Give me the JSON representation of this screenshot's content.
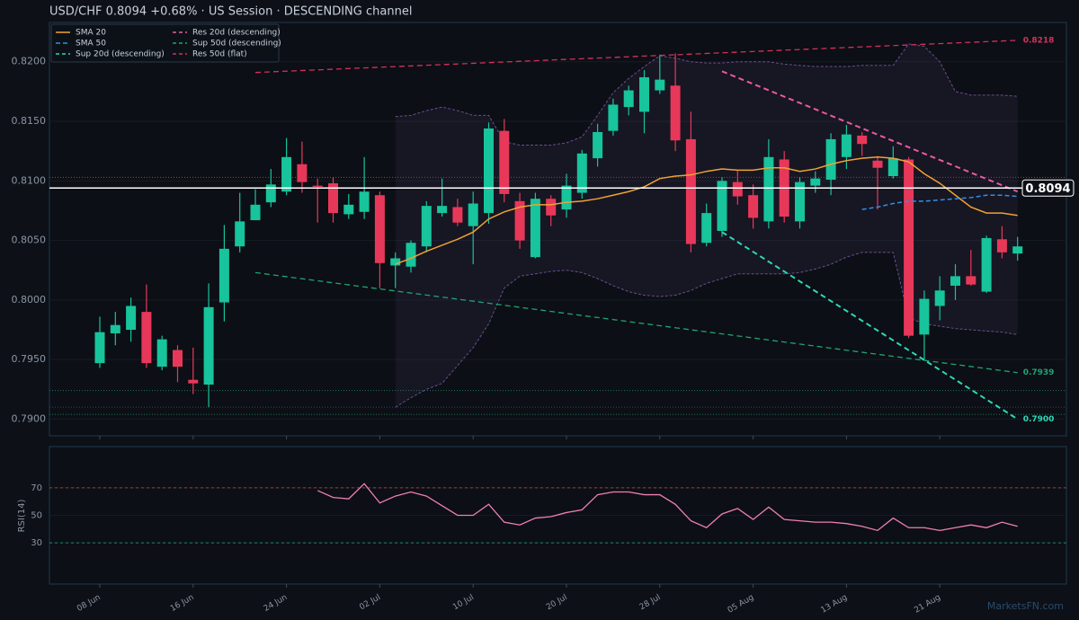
{
  "chart_data": [
    {
      "type": "candlestick",
      "title": "USD/CHF   0.8094   +0.68%  ·  US Session  ·  DESCENDING channel",
      "categories": [
        "08 Jun",
        null,
        null,
        null,
        null,
        null,
        "16 Jun",
        null,
        null,
        null,
        null,
        null,
        "24 Jun",
        null,
        null,
        null,
        null,
        null,
        "02 Jul",
        null,
        null,
        null,
        null,
        null,
        "10 Jul",
        null,
        null,
        null,
        null,
        null,
        "20 Jul",
        null,
        null,
        null,
        null,
        null,
        "28 Jul",
        null,
        null,
        null,
        null,
        null,
        "05 Aug",
        null,
        null,
        null,
        null,
        null,
        "13 Aug",
        null,
        null,
        null,
        null,
        null,
        "21 Aug",
        null,
        null,
        null,
        null,
        null
      ],
      "candles": {
        "up_color": "#17c49c",
        "down_color": "#e8385a",
        "open": [
          0.7947,
          0.7972,
          0.7975,
          0.799,
          0.7944,
          0.7958,
          0.7933,
          0.7929,
          0.7998,
          0.8045,
          0.8067,
          0.8082,
          0.8091,
          0.8114,
          0.8096,
          0.8098,
          0.8072,
          0.8074,
          0.8088,
          0.8029,
          0.8028,
          0.8045,
          0.8073,
          0.8078,
          0.8062,
          0.8073,
          0.8142,
          0.8083,
          0.8036,
          0.8085,
          0.8076,
          0.809,
          0.8119,
          0.8142,
          0.8162,
          0.8158,
          0.8176,
          0.818,
          0.8135,
          0.8048,
          0.8058,
          0.8099,
          0.8088,
          0.8066,
          0.8118,
          0.8066,
          0.8096,
          0.8101,
          0.812,
          0.8138,
          0.8117,
          0.8104,
          0.8118,
          0.7971,
          0.7995,
          0.8012,
          0.802,
          0.8007,
          0.8051,
          0.8039
        ],
        "high": [
          0.7986,
          0.799,
          0.8002,
          0.8013,
          0.797,
          0.7962,
          0.796,
          0.8014,
          0.8063,
          0.809,
          0.8093,
          0.811,
          0.8136,
          0.8133,
          0.8102,
          0.8103,
          0.8089,
          0.812,
          0.8091,
          0.804,
          0.805,
          0.8083,
          0.8102,
          0.8085,
          0.8091,
          0.8149,
          0.8152,
          0.809,
          0.809,
          0.8088,
          0.8106,
          0.8126,
          0.8148,
          0.8169,
          0.818,
          0.8193,
          0.8206,
          0.8207,
          0.8158,
          0.8081,
          0.8103,
          0.8109,
          0.8097,
          0.8135,
          0.8125,
          0.8103,
          0.8108,
          0.814,
          0.8147,
          0.8141,
          0.8121,
          0.8129,
          0.812,
          0.8008,
          0.802,
          0.803,
          0.8042,
          0.8054,
          0.8062,
          0.8053
        ],
        "low": [
          0.7943,
          0.7962,
          0.7965,
          0.7943,
          0.7941,
          0.7931,
          0.7921,
          0.791,
          0.7982,
          0.804,
          0.8067,
          0.8078,
          0.8088,
          0.809,
          0.8065,
          0.8065,
          0.8068,
          0.8068,
          0.801,
          0.801,
          0.8023,
          0.804,
          0.807,
          0.8062,
          0.803,
          0.8064,
          0.8082,
          0.8043,
          0.8035,
          0.8062,
          0.8069,
          0.8085,
          0.8112,
          0.8138,
          0.8155,
          0.814,
          0.8173,
          0.8125,
          0.804,
          0.8045,
          0.8053,
          0.808,
          0.806,
          0.806,
          0.8065,
          0.806,
          0.809,
          0.8088,
          0.811,
          0.8121,
          0.8076,
          0.8102,
          0.7968,
          0.795,
          0.7983,
          0.8,
          0.8012,
          0.8006,
          0.8035,
          0.8033
        ],
        "close": [
          0.7973,
          0.7979,
          0.7995,
          0.7947,
          0.7967,
          0.7944,
          0.793,
          0.7994,
          0.8043,
          0.8066,
          0.808,
          0.8097,
          0.812,
          0.8099,
          0.8095,
          0.8073,
          0.808,
          0.8091,
          0.8031,
          0.8035,
          0.8048,
          0.8079,
          0.8079,
          0.8065,
          0.8081,
          0.8144,
          0.8089,
          0.805,
          0.8085,
          0.8071,
          0.8096,
          0.8123,
          0.8141,
          0.8164,
          0.8176,
          0.8187,
          0.8185,
          0.8134,
          0.8047,
          0.8073,
          0.81,
          0.8087,
          0.8069,
          0.812,
          0.807,
          0.8099,
          0.8102,
          0.8135,
          0.8139,
          0.8131,
          0.8111,
          0.8119,
          0.797,
          0.8001,
          0.8008,
          0.802,
          0.8013,
          0.8052,
          0.804,
          0.8045
        ]
      },
      "band": {
        "color": "#6b4e8f",
        "upper": [
          null,
          null,
          null,
          null,
          null,
          null,
          null,
          null,
          null,
          null,
          null,
          null,
          null,
          null,
          null,
          null,
          null,
          null,
          null,
          0.8154,
          0.8155,
          0.8159,
          0.8162,
          0.8159,
          0.8155,
          0.8155,
          0.8133,
          0.813,
          0.813,
          0.813,
          0.8132,
          0.8137,
          0.8155,
          0.8174,
          0.8186,
          0.8196,
          0.8205,
          0.8203,
          0.82,
          0.8199,
          0.8199,
          0.82,
          0.82,
          0.82,
          0.8198,
          0.8197,
          0.8196,
          0.8196,
          0.8196,
          0.8197,
          0.8197,
          0.8197,
          0.8215,
          0.8213,
          0.82,
          0.8175,
          0.8172,
          0.8172,
          0.8172,
          0.8171
        ],
        "lower": [
          null,
          null,
          null,
          null,
          null,
          null,
          null,
          null,
          null,
          null,
          null,
          null,
          null,
          null,
          null,
          null,
          null,
          null,
          null,
          0.791,
          0.7918,
          0.7925,
          0.793,
          0.7945,
          0.796,
          0.798,
          0.801,
          0.802,
          0.8022,
          0.8024,
          0.8025,
          0.8023,
          0.8018,
          0.8012,
          0.8007,
          0.8004,
          0.8003,
          0.8004,
          0.8008,
          0.8014,
          0.8018,
          0.8022,
          0.8022,
          0.8022,
          0.8022,
          0.8023,
          0.8026,
          0.803,
          0.8036,
          0.804,
          0.804,
          0.804,
          0.7985,
          0.798,
          0.7978,
          0.7976,
          0.7975,
          0.7974,
          0.7973,
          0.7971
        ]
      },
      "series": [
        {
          "name": "SMA 20",
          "color": "#f0a232",
          "dashed": false,
          "values": [
            null,
            null,
            null,
            null,
            null,
            null,
            null,
            null,
            null,
            null,
            null,
            null,
            null,
            null,
            null,
            null,
            null,
            null,
            null,
            0.803,
            0.8035,
            0.8041,
            0.8046,
            0.8051,
            0.8057,
            0.8068,
            0.8074,
            0.8078,
            0.808,
            0.808,
            0.8082,
            0.8083,
            0.8085,
            0.8088,
            0.8091,
            0.8095,
            0.8102,
            0.8104,
            0.8105,
            0.8108,
            0.811,
            0.8109,
            0.8109,
            0.8111,
            0.8111,
            0.8108,
            0.811,
            0.8114,
            0.8117,
            0.8119,
            0.812,
            0.8119,
            0.8116,
            0.8106,
            0.8098,
            0.8088,
            0.8078,
            0.8073,
            0.8073,
            0.8071
          ]
        },
        {
          "name": "SMA 50",
          "color": "#2f8fe6",
          "dashed": true,
          "values": [
            null,
            null,
            null,
            null,
            null,
            null,
            null,
            null,
            null,
            null,
            null,
            null,
            null,
            null,
            null,
            null,
            null,
            null,
            null,
            null,
            null,
            null,
            null,
            null,
            null,
            null,
            null,
            null,
            null,
            null,
            null,
            null,
            null,
            null,
            null,
            null,
            null,
            null,
            null,
            null,
            null,
            null,
            null,
            null,
            null,
            null,
            null,
            null,
            null,
            0.8076,
            0.8078,
            0.8081,
            0.8083,
            0.8083,
            0.8084,
            0.8085,
            0.8086,
            0.8088,
            0.8088,
            0.8087
          ]
        }
      ],
      "trendlines": [
        {
          "name": "Sup 20d (descending)",
          "color": "#2fd6b6",
          "x": [
            40,
            59
          ],
          "values": [
            0.8057,
            0.79
          ],
          "value_labels": [
            null,
            "0.7900"
          ]
        },
        {
          "name": "Res 20d (descending)",
          "color": "#ea5aa0",
          "x": [
            40,
            59
          ],
          "values": [
            0.8192,
            0.8091
          ]
        },
        {
          "name": "Sup 50d (descending)",
          "color": "#1fa472",
          "x": [
            10,
            59
          ],
          "values": [
            0.8023,
            0.7939
          ],
          "value_labels": [
            null,
            "0.7939"
          ]
        },
        {
          "name": "Res 50d (flat)",
          "color": "#d2315c",
          "x": [
            10,
            59
          ],
          "values": [
            0.8191,
            0.8218
          ],
          "value_labels": [
            null,
            "0.8218"
          ]
        }
      ],
      "levels": [
        {
          "value": 0.8103,
          "color": "#a8432e"
        },
        {
          "value": 0.7924,
          "color": "#1c7a55"
        },
        {
          "value": 0.791,
          "color": "#3a4a56"
        },
        {
          "value": 0.7904,
          "color": "#1c7a55"
        }
      ],
      "last_price": 0.8094,
      "ylim": [
        0.7886,
        0.8233
      ],
      "yticks": [
        {
          "value": 0.79,
          "label": "0.7900"
        },
        {
          "value": 0.795,
          "label": "0.7950"
        },
        {
          "value": 0.8,
          "label": "0.8000"
        },
        {
          "value": 0.805,
          "label": "0.8050"
        },
        {
          "value": 0.81,
          "label": "0.8100"
        },
        {
          "value": 0.815,
          "label": "0.8150"
        },
        {
          "value": 0.82,
          "label": "0.8200"
        }
      ],
      "grid": true,
      "legend": "upper left",
      "watermark": "MarketsFN.com"
    },
    {
      "type": "line",
      "ylabel": "RSI(14)",
      "color": "#f07fb4",
      "values": [
        null,
        null,
        null,
        null,
        null,
        null,
        null,
        null,
        null,
        null,
        null,
        null,
        null,
        null,
        68,
        63,
        62,
        73,
        59,
        64,
        67,
        64,
        57,
        50,
        50,
        58,
        45,
        43,
        48,
        49,
        52,
        54,
        65,
        67,
        67,
        65,
        65,
        58,
        46,
        41,
        51,
        55,
        47,
        56,
        47,
        46,
        45,
        45,
        44,
        42,
        39,
        48,
        41,
        41,
        39,
        41,
        43,
        41,
        45,
        42
      ],
      "ylim": [
        0,
        100
      ],
      "yticks": [
        30,
        50,
        70
      ],
      "lines": [
        {
          "value": 70,
          "color": "#a83838"
        },
        {
          "value": 30,
          "color": "#1a8a6a"
        }
      ]
    }
  ]
}
